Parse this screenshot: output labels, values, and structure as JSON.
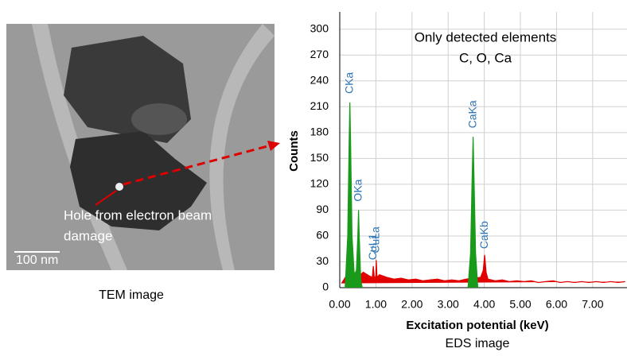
{
  "tem_image": {
    "annotation": [
      "Hole from electron beam",
      "damage"
    ],
    "scale_bar": "100 nm",
    "caption": "TEM image"
  },
  "chart_data": {
    "type": "area",
    "annotation": [
      "Only detected elements",
      "C, O, Ca"
    ],
    "xlabel": "Excitation potential (keV)",
    "ylabel": "Counts",
    "caption": "EDS image",
    "xlim": [
      0,
      7.95
    ],
    "ylim": [
      0,
      320
    ],
    "xticks": [
      {
        "value": 0,
        "label": "0.00"
      },
      {
        "value": 1,
        "label": "1.00"
      },
      {
        "value": 2,
        "label": "2.00"
      },
      {
        "value": 3,
        "label": "3.00"
      },
      {
        "value": 4,
        "label": "4.00"
      },
      {
        "value": 5,
        "label": "5.00"
      },
      {
        "value": 6,
        "label": "6.00"
      },
      {
        "value": 7,
        "label": "7.00"
      }
    ],
    "yticks": [
      0,
      30,
      60,
      90,
      120,
      150,
      180,
      210,
      240,
      270,
      300
    ],
    "grid": true,
    "series": [
      {
        "color": "#e00000",
        "x": [
          0.05,
          0.2,
          0.35,
          0.5,
          0.65,
          0.8,
          0.9,
          0.93,
          0.96,
          1.0,
          1.01,
          1.03,
          1.1,
          1.3,
          1.5,
          1.7,
          1.9,
          2.1,
          2.3,
          2.5,
          2.7,
          2.9,
          3.1,
          3.3,
          3.5,
          3.9,
          3.97,
          4.01,
          4.05,
          4.1,
          4.3,
          4.5,
          4.7,
          4.9,
          5.1,
          5.3,
          5.5,
          5.7,
          5.9,
          6.1,
          6.3,
          6.5,
          6.7,
          6.9,
          7.1,
          7.3,
          7.5,
          7.7,
          7.9
        ],
        "values": [
          5,
          15,
          20,
          12,
          18,
          14,
          12,
          25,
          10,
          14,
          32,
          12,
          15,
          12,
          10,
          11,
          9,
          10,
          8,
          9,
          10,
          8,
          9,
          8,
          10,
          12,
          20,
          38,
          18,
          10,
          8,
          9,
          7,
          8,
          7,
          8,
          6,
          7,
          8,
          6,
          7,
          6,
          7,
          6,
          7,
          6,
          7,
          6,
          7
        ]
      },
      {
        "color": "#1a9a1a",
        "x": [
          0.15,
          0.22,
          0.26,
          0.28,
          0.3,
          0.34,
          0.4,
          0.46,
          0.5,
          0.52,
          0.54,
          0.58,
          0.62,
          null,
          3.55,
          3.62,
          3.66,
          3.69,
          3.72,
          3.76,
          3.82
        ],
        "values": [
          0,
          60,
          170,
          215,
          170,
          60,
          15,
          20,
          60,
          90,
          60,
          10,
          0,
          null,
          0,
          40,
          120,
          175,
          120,
          40,
          0
        ]
      }
    ],
    "peak_labels": [
      {
        "label": "CKa",
        "x": 0.28,
        "y": 225
      },
      {
        "label": "OKa",
        "x": 0.52,
        "y": 100
      },
      {
        "label": "CuL1",
        "x": 0.93,
        "y": 32
      },
      {
        "label": "CuLa",
        "x": 1.01,
        "y": 40
      },
      {
        "label": "CaKa",
        "x": 3.69,
        "y": 185
      },
      {
        "label": "CaKb",
        "x": 4.01,
        "y": 45
      }
    ]
  }
}
